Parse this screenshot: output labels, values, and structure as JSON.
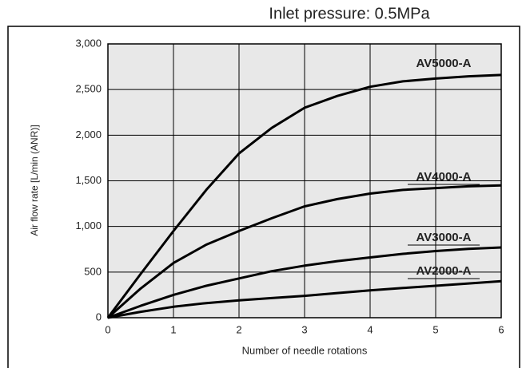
{
  "chart_data": {
    "type": "line",
    "title": "Inlet pressure: 0.5MPa",
    "x_label": "Number of needle rotations",
    "y_label": "Air flow rate [L/min (ANR)]",
    "x": [
      0,
      0.5,
      1,
      1.5,
      2,
      2.5,
      3,
      3.5,
      4,
      4.5,
      5,
      5.5,
      6
    ],
    "series": [
      {
        "name": "AV5000-A",
        "color": "#000000",
        "values": [
          0,
          480,
          950,
          1400,
          1800,
          2080,
          2300,
          2430,
          2530,
          2590,
          2620,
          2645,
          2660
        ]
      },
      {
        "name": "AV4000-A",
        "color": "#000000",
        "values": [
          0,
          320,
          600,
          800,
          950,
          1090,
          1220,
          1300,
          1360,
          1400,
          1420,
          1440,
          1450
        ]
      },
      {
        "name": "AV3000-A",
        "color": "#000000",
        "values": [
          0,
          130,
          250,
          350,
          430,
          510,
          570,
          620,
          660,
          700,
          730,
          755,
          770
        ]
      },
      {
        "name": "AV2000-A",
        "color": "#000000",
        "values": [
          0,
          65,
          120,
          160,
          190,
          215,
          240,
          270,
          300,
          325,
          350,
          375,
          400
        ]
      }
    ],
    "xlim": [
      0,
      6
    ],
    "xticks": [
      0,
      1,
      2,
      3,
      4,
      5,
      6
    ],
    "ylim": [
      0,
      3000
    ],
    "yticks": [
      0,
      500,
      {
        "value": 1000,
        "label": "1,000"
      },
      {
        "value": 1500,
        "label": "1,500"
      },
      {
        "value": 2000,
        "label": "2,000"
      },
      {
        "value": 2500,
        "label": "2,500"
      },
      {
        "value": 3000,
        "label": "3,000"
      }
    ],
    "grid": true,
    "background": "#e8e8e8"
  }
}
